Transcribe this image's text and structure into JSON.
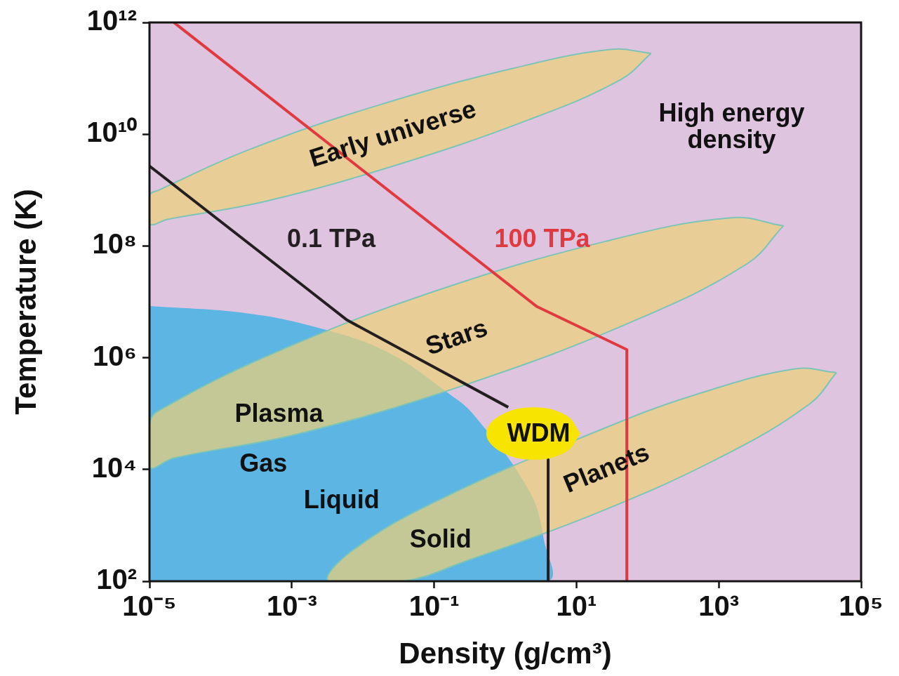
{
  "chart_data": {
    "type": "area",
    "xlabel": "Density (g/cm³)",
    "ylabel": "Temperature (K)",
    "log": "xy",
    "legend": false,
    "xlim": [
      1e-05,
      100000.0
    ],
    "ylim": [
      100,
      1000000000000.0
    ],
    "xticks": [
      {
        "value": 1e-05,
        "label": "10⁻⁵"
      },
      {
        "value": 0.001,
        "label": "10⁻³"
      },
      {
        "value": 0.1,
        "label": "10⁻¹"
      },
      {
        "value": 10,
        "label": "10¹"
      },
      {
        "value": 1000,
        "label": "10³"
      },
      {
        "value": 100000,
        "label": "10⁵"
      }
    ],
    "yticks": [
      {
        "value": 100,
        "label": "10²"
      },
      {
        "value": 10000,
        "label": "10⁴"
      },
      {
        "value": 1000000,
        "label": "10⁶"
      },
      {
        "value": 100000000,
        "label": "10⁸"
      },
      {
        "value": 10000000000,
        "label": "10¹⁰"
      },
      {
        "value": 1000000000000,
        "label": "10¹²"
      }
    ],
    "series": [
      {
        "color": "#5db5e3",
        "x": [
          1e-05,
          0.00022,
          0.0022,
          0.021,
          0.16,
          0.36,
          2.2,
          3.5,
          3.8,
          1e-05
        ],
        "values": [
          8400000.0,
          6300000.0,
          3500000.0,
          1300000.0,
          230000.0,
          95000.0,
          4000,
          530,
          100,
          100
        ]
      },
      {
        "type": "area",
        "name": "Early universe",
        "color": "#ecd07a",
        "x": [
          112,
          42,
          2.1,
          0.032,
          0.00045,
          1.8e-05,
          1e-05,
          1e-05,
          1.35e-05,
          0.00027,
          0.0177,
          1.26,
          31
        ],
        "values": [
          280000000000.0,
          95000000000.0,
          18000000000.0,
          2900000000.0,
          640000000.0,
          300000000.0,
          250000000.0,
          800000000.0,
          1000000000.0,
          5500000000.0,
          34000000000.0,
          150000000000.0,
          330000000000.0
        ]
      },
      {
        "type": "area",
        "name": "Stars",
        "color": "#ecd07a",
        "x": [
          8100,
          2500,
          60,
          0.3,
          0.0013,
          2.2e-05,
          1e-05,
          1e-05,
          1.3e-05,
          0.00055,
          0.11,
          25,
          1500
        ],
        "values": [
          230000000.0,
          48000000.0,
          4400000.0,
          340000.0,
          44000.0,
          16000.0,
          11000.0,
          66000.0,
          110000.0,
          1200000.0,
          16000000.0,
          120000000.0,
          320000000.0
        ]
      },
      {
        "type": "area",
        "name": "Planets",
        "color": "#ecd07a",
        "x": [
          45000,
          19000,
          1100,
          18,
          0.28,
          0.037,
          0.0033,
          0.007,
          0.12,
          24,
          480,
          11700
        ],
        "values": [
          540000.0,
          150000.0,
          17000.0,
          1600,
          230,
          100,
          100,
          350,
          2900,
          54000.0,
          220000.0,
          630000.0
        ]
      },
      {
        "type": "line",
        "name": "0.1 TPa",
        "color": "#231f20",
        "x": [
          1e-05,
          0.0014,
          0.006,
          1.1,
          null,
          4,
          4
        ],
        "values": [
          2700000000.0,
          20000000.0,
          4700000.0,
          130000.0,
          null,
          15000.0,
          100
        ]
      },
      {
        "type": "line",
        "name": "100 TPa",
        "color": "#e03a40",
        "x": [
          2.2e-05,
          2.75,
          51,
          51
        ],
        "values": [
          1000000000000.0,
          8300000.0,
          1400000.0,
          100
        ]
      },
      {
        "type": "area",
        "name": "WDM",
        "color": "#f7e400",
        "x": [
          11.4,
          7.2,
          2.5,
          0.85,
          0.54,
          0.85,
          2.5,
          7.2
        ],
        "values": [
          44000.0,
          21000.0,
          15000.0,
          21000.0,
          44000.0,
          93000.0,
          130000.0,
          93000.0
        ]
      }
    ],
    "annotations": [
      "High energy\ndensity",
      "Plasma",
      "Gas",
      "Liquid",
      "Solid"
    ]
  }
}
